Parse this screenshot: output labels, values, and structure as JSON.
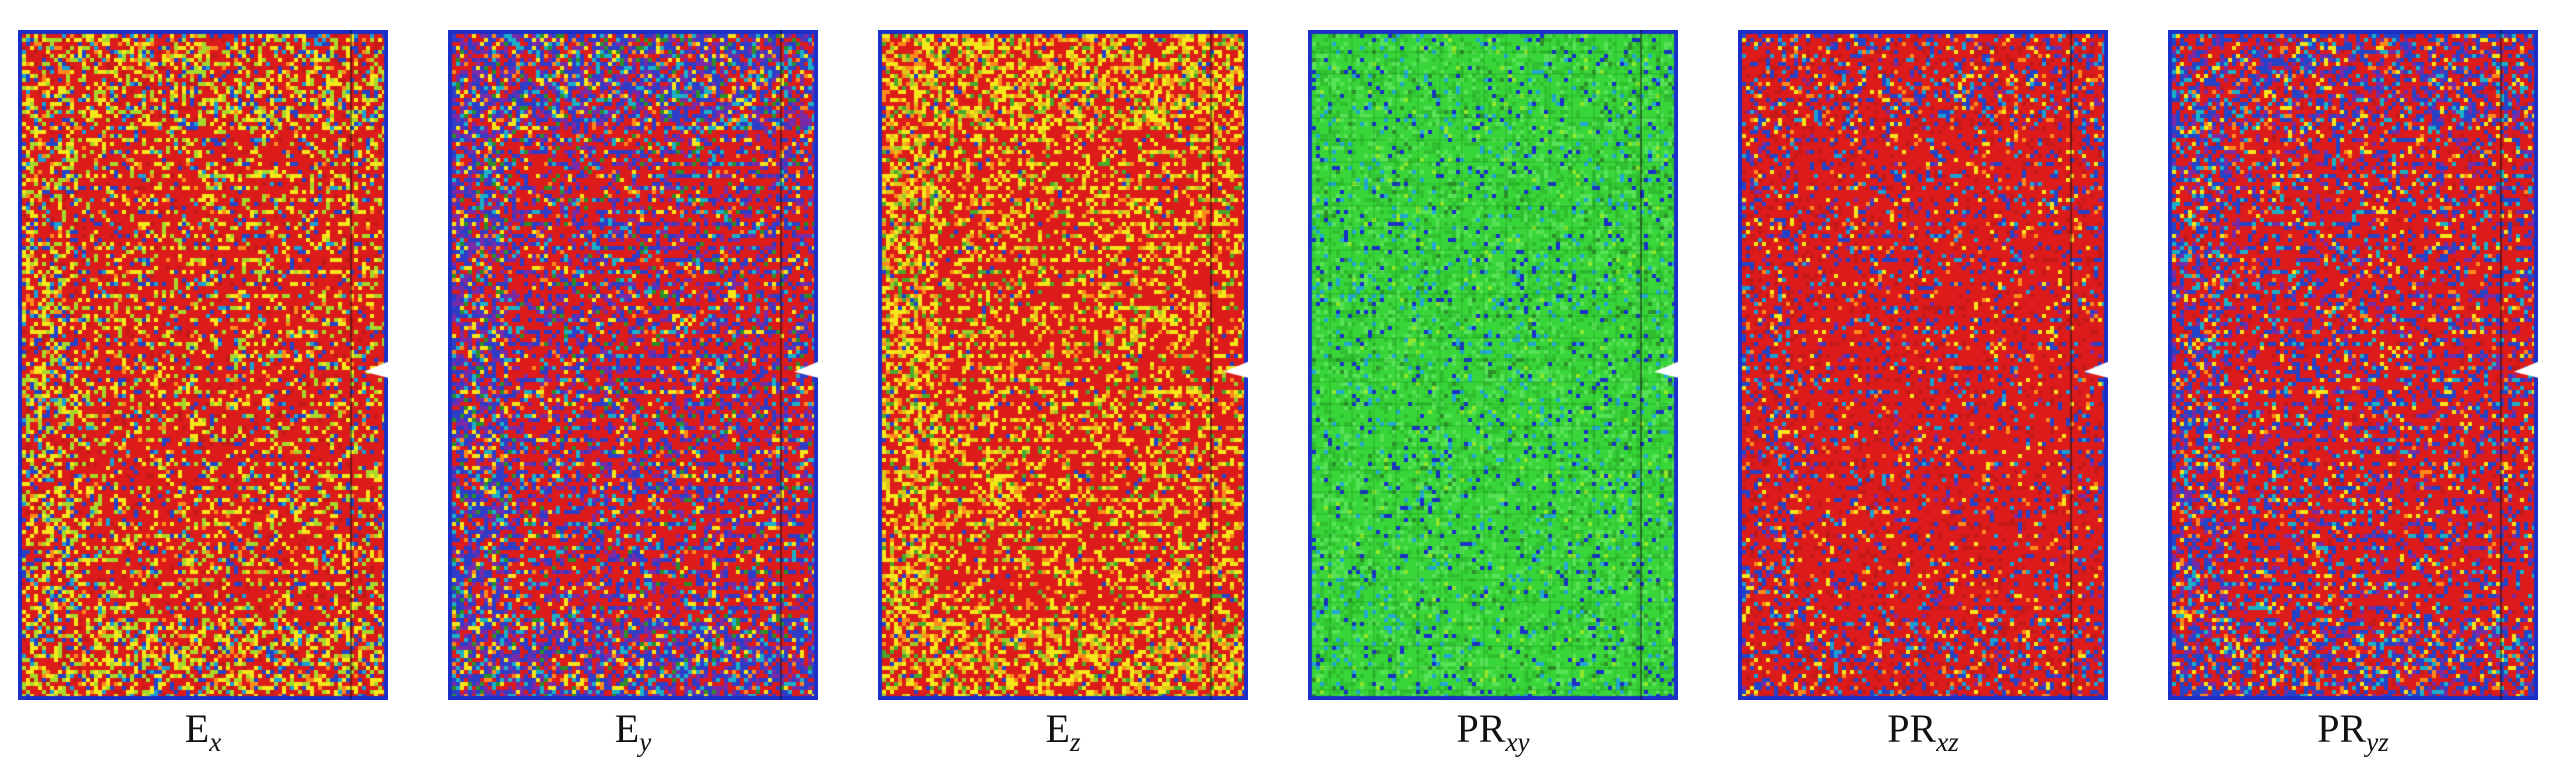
{
  "figure": {
    "panels": [
      {
        "id": "ex",
        "label_main": "E",
        "label_sub": "x",
        "base_color": "#dd1b1b",
        "palette": [
          "#dd1b1b",
          "#c41919",
          "#f5e81a",
          "#a6d92a",
          "#2344c8",
          "#1a9fd6",
          "#ff8a1a"
        ],
        "weights": [
          0.42,
          0.08,
          0.17,
          0.14,
          0.1,
          0.05,
          0.04
        ]
      },
      {
        "id": "ey",
        "label_main": "E",
        "label_sub": "y",
        "base_color": "#dd1b1b",
        "palette": [
          "#dd1b1b",
          "#2e3dc8",
          "#7a2aa6",
          "#19b2c8",
          "#f5e81a",
          "#2d8f2a",
          "#ff8a1a"
        ],
        "weights": [
          0.28,
          0.27,
          0.18,
          0.1,
          0.08,
          0.05,
          0.04
        ]
      },
      {
        "id": "ez",
        "label_main": "E",
        "label_sub": "z",
        "base_color": "#dd1b1b",
        "palette": [
          "#dd1b1b",
          "#f5e81a",
          "#e3c419",
          "#ff8a1a",
          "#4aa82a",
          "#2344c8",
          "#9acb2a"
        ],
        "weights": [
          0.45,
          0.22,
          0.1,
          0.09,
          0.07,
          0.03,
          0.04
        ]
      },
      {
        "id": "prxy",
        "label_main": "PR",
        "label_sub": "xy",
        "base_color": "#39d63a",
        "palette": [
          "#39d63a",
          "#2fbf2f",
          "#57e357",
          "#1a2ec8",
          "#22a8d6",
          "#8fe82a",
          "#2d8f2a"
        ],
        "weights": [
          0.52,
          0.2,
          0.14,
          0.05,
          0.05,
          0.02,
          0.02
        ]
      },
      {
        "id": "prxz",
        "label_main": "PR",
        "label_sub": "xz",
        "base_color": "#dd1b1b",
        "palette": [
          "#dd1b1b",
          "#c41919",
          "#2344c8",
          "#1a9fd6",
          "#f5e81a",
          "#ff8a1a",
          "#7a2aa6"
        ],
        "weights": [
          0.55,
          0.13,
          0.14,
          0.06,
          0.05,
          0.04,
          0.03
        ]
      },
      {
        "id": "pryz",
        "label_main": "PR",
        "label_sub": "yz",
        "base_color": "#dd1b1b",
        "palette": [
          "#dd1b1b",
          "#2344c8",
          "#7a2aa6",
          "#19b2c8",
          "#f5e81a",
          "#ff8a1a",
          "#c41919"
        ],
        "weights": [
          0.4,
          0.24,
          0.12,
          0.09,
          0.06,
          0.04,
          0.05
        ]
      }
    ]
  }
}
